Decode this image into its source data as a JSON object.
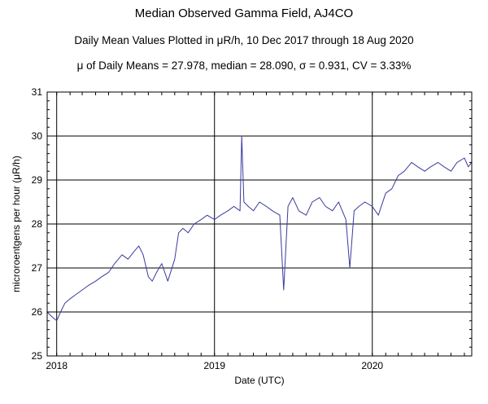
{
  "chart_data": {
    "type": "line",
    "title": "Median Observed Gamma Field, AJ4CO",
    "subtitle": "Daily Mean Values Plotted in μR/h, 10 Dec 2017 through 18 Aug 2020",
    "stats_line": "μ of Daily Means = 27.978,   median = 28.090,   σ = 0.931,   CV = 3.33%",
    "xlabel": "Date (UTC)",
    "ylabel": "microroentgens per hour (μR/h)",
    "xlim": [
      "2017-12-10",
      "2020-08-18"
    ],
    "ylim": [
      25,
      31
    ],
    "x_ticks": [
      "2018",
      "2019",
      "2020"
    ],
    "y_ticks": [
      "25",
      "26",
      "27",
      "28",
      "29",
      "30",
      "31"
    ],
    "grid": true,
    "series_color": "#3a3aa0",
    "series": [
      {
        "x": [
          "2017-12-10",
          "2017-12-20",
          "2018-01-01",
          "2018-01-10",
          "2018-01-20",
          "2018-02-01",
          "2018-02-15",
          "2018-03-01",
          "2018-03-15",
          "2018-04-01",
          "2018-04-15",
          "2018-05-01",
          "2018-05-15",
          "2018-06-01",
          "2018-06-15",
          "2018-07-01",
          "2018-07-10",
          "2018-07-20",
          "2018-08-01",
          "2018-08-10",
          "2018-08-20",
          "2018-09-01",
          "2018-09-15",
          "2018-10-01",
          "2018-10-10",
          "2018-10-20",
          "2018-11-01",
          "2018-11-15",
          "2018-12-01",
          "2018-12-15",
          "2019-01-01",
          "2019-01-15",
          "2019-02-01",
          "2019-02-15",
          "2019-03-01",
          "2019-03-05",
          "2019-03-10",
          "2019-03-20",
          "2019-04-01",
          "2019-04-15",
          "2019-05-01",
          "2019-05-15",
          "2019-06-01",
          "2019-06-10",
          "2019-06-20",
          "2019-07-01",
          "2019-07-15",
          "2019-08-01",
          "2019-08-15",
          "2019-09-01",
          "2019-09-15",
          "2019-10-01",
          "2019-10-15",
          "2019-11-01",
          "2019-11-10",
          "2019-11-20",
          "2019-12-01",
          "2019-12-15",
          "2020-01-01",
          "2020-01-15",
          "2020-02-01",
          "2020-02-15",
          "2020-03-01",
          "2020-03-15",
          "2020-04-01",
          "2020-04-15",
          "2020-05-01",
          "2020-05-15",
          "2020-06-01",
          "2020-06-15",
          "2020-07-01",
          "2020-07-15",
          "2020-08-01",
          "2020-08-10",
          "2020-08-18"
        ],
        "values": [
          26.0,
          25.9,
          25.8,
          26.0,
          26.2,
          26.3,
          26.4,
          26.5,
          26.6,
          26.7,
          26.8,
          26.9,
          27.1,
          27.3,
          27.2,
          27.4,
          27.5,
          27.3,
          26.8,
          26.7,
          26.9,
          27.1,
          26.7,
          27.2,
          27.8,
          27.9,
          27.8,
          28.0,
          28.1,
          28.2,
          28.1,
          28.2,
          28.3,
          28.4,
          28.3,
          30.0,
          28.5,
          28.4,
          28.3,
          28.5,
          28.4,
          28.3,
          28.2,
          26.5,
          28.4,
          28.6,
          28.3,
          28.2,
          28.5,
          28.6,
          28.4,
          28.3,
          28.5,
          28.1,
          27.0,
          28.3,
          28.4,
          28.5,
          28.4,
          28.2,
          28.7,
          28.8,
          29.1,
          29.2,
          29.4,
          29.3,
          29.2,
          29.3,
          29.4,
          29.3,
          29.2,
          29.4,
          29.5,
          29.3,
          29.4
        ]
      }
    ]
  }
}
